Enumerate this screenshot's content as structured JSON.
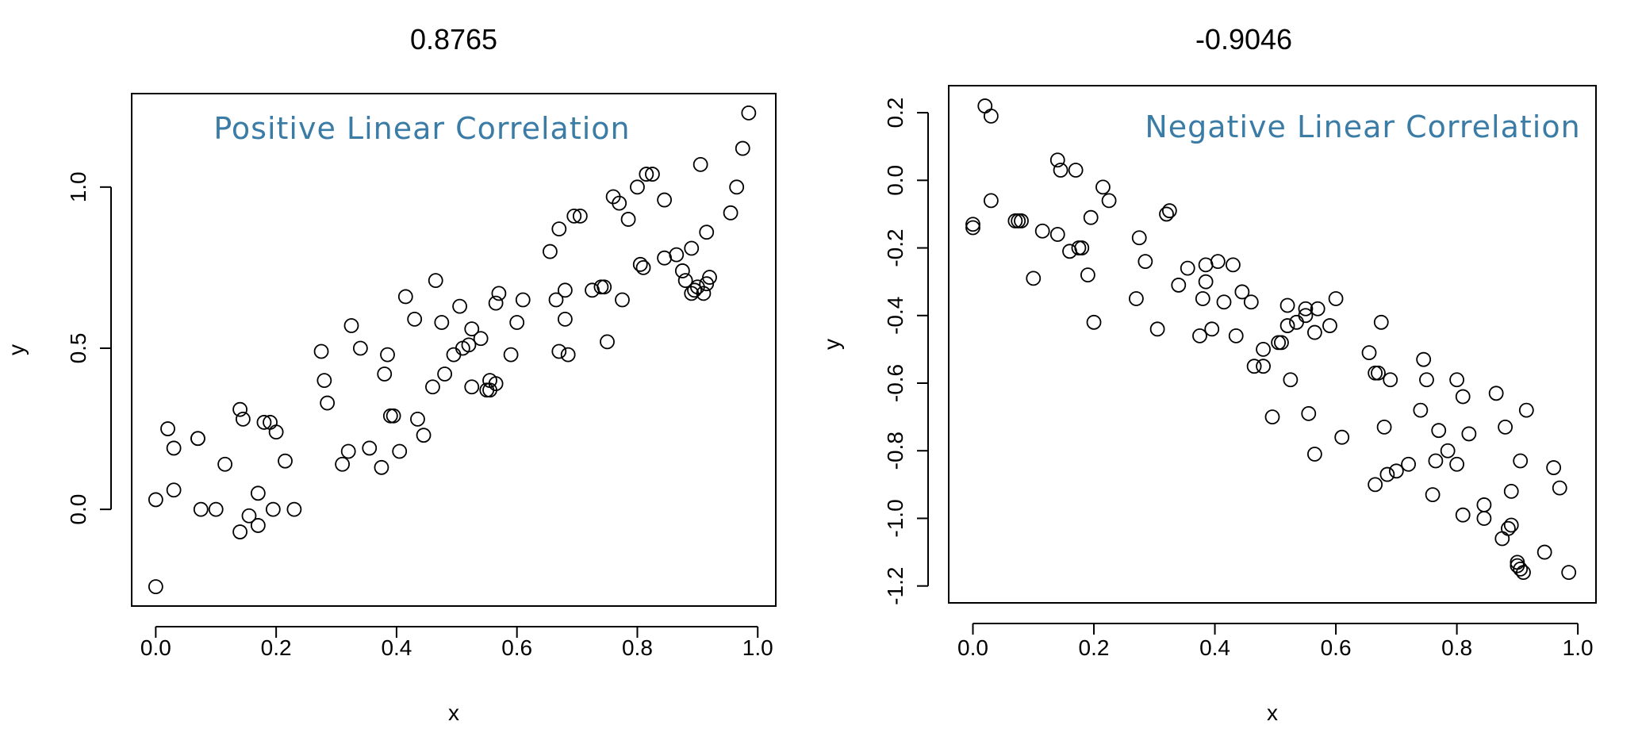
{
  "chart_data": [
    {
      "type": "scatter",
      "title": "0.8765",
      "xlabel": "x",
      "ylabel": "y",
      "xlim": [
        -0.04,
        1.03
      ],
      "ylim": [
        -0.3,
        1.29
      ],
      "xticks": [
        0.0,
        0.2,
        0.4,
        0.6,
        0.8,
        1.0
      ],
      "yticks": [
        0.0,
        0.5,
        1.0
      ],
      "xtick_labels": [
        "0.0",
        "0.2",
        "0.4",
        "0.6",
        "0.8",
        "1.0"
      ],
      "ytick_labels": [
        "0.0",
        "0.5",
        "1.0"
      ],
      "annotation": {
        "text": "Positive Linear Correlation",
        "color": "#3a7ca5"
      },
      "grid": false,
      "points": [
        [
          0.0,
          -0.24
        ],
        [
          0.0,
          0.03
        ],
        [
          0.02,
          0.25
        ],
        [
          0.03,
          0.19
        ],
        [
          0.03,
          0.06
        ],
        [
          0.07,
          0.22
        ],
        [
          0.07,
          0.22
        ],
        [
          0.075,
          0.0
        ],
        [
          0.1,
          0.0
        ],
        [
          0.115,
          0.14
        ],
        [
          0.14,
          -0.07
        ],
        [
          0.14,
          0.31
        ],
        [
          0.145,
          0.28
        ],
        [
          0.155,
          -0.02
        ],
        [
          0.17,
          -0.05
        ],
        [
          0.17,
          0.05
        ],
        [
          0.18,
          0.27
        ],
        [
          0.19,
          0.27
        ],
        [
          0.195,
          0.0
        ],
        [
          0.2,
          0.24
        ],
        [
          0.215,
          0.15
        ],
        [
          0.23,
          0.0
        ],
        [
          0.275,
          0.49
        ],
        [
          0.28,
          0.4
        ],
        [
          0.285,
          0.33
        ],
        [
          0.31,
          0.14
        ],
        [
          0.32,
          0.18
        ],
        [
          0.325,
          0.57
        ],
        [
          0.34,
          0.5
        ],
        [
          0.355,
          0.19
        ],
        [
          0.375,
          0.13
        ],
        [
          0.38,
          0.42
        ],
        [
          0.385,
          0.48
        ],
        [
          0.39,
          0.29
        ],
        [
          0.395,
          0.29
        ],
        [
          0.405,
          0.18
        ],
        [
          0.415,
          0.66
        ],
        [
          0.43,
          0.59
        ],
        [
          0.435,
          0.28
        ],
        [
          0.445,
          0.23
        ],
        [
          0.46,
          0.38
        ],
        [
          0.465,
          0.71
        ],
        [
          0.475,
          0.58
        ],
        [
          0.48,
          0.42
        ],
        [
          0.495,
          0.48
        ],
        [
          0.505,
          0.63
        ],
        [
          0.51,
          0.5
        ],
        [
          0.52,
          0.51
        ],
        [
          0.525,
          0.56
        ],
        [
          0.525,
          0.38
        ],
        [
          0.54,
          0.53
        ],
        [
          0.55,
          0.37
        ],
        [
          0.555,
          0.37
        ],
        [
          0.555,
          0.4
        ],
        [
          0.565,
          0.39
        ],
        [
          0.565,
          0.64
        ],
        [
          0.57,
          0.67
        ],
        [
          0.59,
          0.48
        ],
        [
          0.6,
          0.58
        ],
        [
          0.61,
          0.65
        ],
        [
          0.655,
          0.8
        ],
        [
          0.665,
          0.65
        ],
        [
          0.67,
          0.87
        ],
        [
          0.67,
          0.49
        ],
        [
          0.68,
          0.68
        ],
        [
          0.68,
          0.59
        ],
        [
          0.685,
          0.48
        ],
        [
          0.695,
          0.91
        ],
        [
          0.705,
          0.91
        ],
        [
          0.725,
          0.68
        ],
        [
          0.74,
          0.69
        ],
        [
          0.745,
          0.69
        ],
        [
          0.75,
          0.52
        ],
        [
          0.76,
          0.97
        ],
        [
          0.77,
          0.95
        ],
        [
          0.775,
          0.65
        ],
        [
          0.785,
          0.9
        ],
        [
          0.8,
          1.0
        ],
        [
          0.805,
          0.76
        ],
        [
          0.81,
          0.75
        ],
        [
          0.815,
          1.04
        ],
        [
          0.825,
          1.04
        ],
        [
          0.845,
          0.96
        ],
        [
          0.845,
          0.78
        ],
        [
          0.865,
          0.79
        ],
        [
          0.875,
          0.74
        ],
        [
          0.88,
          0.71
        ],
        [
          0.89,
          0.81
        ],
        [
          0.89,
          0.67
        ],
        [
          0.895,
          0.68
        ],
        [
          0.9,
          0.69
        ],
        [
          0.905,
          1.07
        ],
        [
          0.91,
          0.67
        ],
        [
          0.915,
          0.86
        ],
        [
          0.915,
          0.7
        ],
        [
          0.92,
          0.72
        ],
        [
          0.955,
          0.92
        ],
        [
          0.965,
          1.0
        ],
        [
          0.975,
          1.12
        ],
        [
          0.985,
          1.23
        ]
      ]
    },
    {
      "type": "scatter",
      "title": "-0.9046",
      "xlabel": "x",
      "ylabel": "y",
      "xlim": [
        -0.04,
        1.03
      ],
      "ylim": [
        -1.25,
        0.28
      ],
      "xticks": [
        0.0,
        0.2,
        0.4,
        0.6,
        0.8,
        1.0
      ],
      "yticks": [
        -1.2,
        -1.0,
        -0.8,
        -0.6,
        -0.4,
        -0.2,
        0.0,
        0.2
      ],
      "xtick_labels": [
        "0.0",
        "0.2",
        "0.4",
        "0.6",
        "0.8",
        "1.0"
      ],
      "ytick_labels": [
        "-1.2",
        "-1.0",
        "-0.8",
        "-0.6",
        "-0.4",
        "-0.2",
        "0.0",
        "0.2"
      ],
      "annotation": {
        "text": "Negative Linear Correlation",
        "color": "#3a7ca5"
      },
      "grid": false,
      "points": [
        [
          0.0,
          -0.13
        ],
        [
          0.0,
          -0.14
        ],
        [
          0.02,
          0.22
        ],
        [
          0.03,
          0.19
        ],
        [
          0.03,
          -0.06
        ],
        [
          0.07,
          -0.12
        ],
        [
          0.075,
          -0.12
        ],
        [
          0.08,
          -0.12
        ],
        [
          0.1,
          -0.29
        ],
        [
          0.115,
          -0.15
        ],
        [
          0.14,
          0.06
        ],
        [
          0.14,
          -0.16
        ],
        [
          0.145,
          0.03
        ],
        [
          0.16,
          -0.21
        ],
        [
          0.17,
          0.03
        ],
        [
          0.175,
          -0.2
        ],
        [
          0.18,
          -0.2
        ],
        [
          0.19,
          -0.28
        ],
        [
          0.195,
          -0.11
        ],
        [
          0.2,
          -0.42
        ],
        [
          0.215,
          -0.02
        ],
        [
          0.225,
          -0.06
        ],
        [
          0.27,
          -0.35
        ],
        [
          0.275,
          -0.17
        ],
        [
          0.285,
          -0.24
        ],
        [
          0.305,
          -0.44
        ],
        [
          0.32,
          -0.1
        ],
        [
          0.325,
          -0.09
        ],
        [
          0.34,
          -0.31
        ],
        [
          0.355,
          -0.26
        ],
        [
          0.375,
          -0.46
        ],
        [
          0.38,
          -0.35
        ],
        [
          0.385,
          -0.3
        ],
        [
          0.385,
          -0.25
        ],
        [
          0.395,
          -0.44
        ],
        [
          0.405,
          -0.24
        ],
        [
          0.415,
          -0.36
        ],
        [
          0.43,
          -0.25
        ],
        [
          0.435,
          -0.46
        ],
        [
          0.445,
          -0.33
        ],
        [
          0.46,
          -0.36
        ],
        [
          0.465,
          -0.55
        ],
        [
          0.48,
          -0.5
        ],
        [
          0.48,
          -0.55
        ],
        [
          0.495,
          -0.7
        ],
        [
          0.505,
          -0.48
        ],
        [
          0.51,
          -0.48
        ],
        [
          0.52,
          -0.37
        ],
        [
          0.52,
          -0.43
        ],
        [
          0.525,
          -0.59
        ],
        [
          0.535,
          -0.42
        ],
        [
          0.55,
          -0.38
        ],
        [
          0.55,
          -0.4
        ],
        [
          0.555,
          -0.69
        ],
        [
          0.565,
          -0.45
        ],
        [
          0.565,
          -0.81
        ],
        [
          0.57,
          -0.38
        ],
        [
          0.59,
          -0.43
        ],
        [
          0.6,
          -0.35
        ],
        [
          0.61,
          -0.76
        ],
        [
          0.655,
          -0.51
        ],
        [
          0.665,
          -0.9
        ],
        [
          0.665,
          -0.57
        ],
        [
          0.67,
          -0.57
        ],
        [
          0.675,
          -0.42
        ],
        [
          0.68,
          -0.73
        ],
        [
          0.685,
          -0.87
        ],
        [
          0.69,
          -0.59
        ],
        [
          0.7,
          -0.86
        ],
        [
          0.72,
          -0.84
        ],
        [
          0.74,
          -0.68
        ],
        [
          0.745,
          -0.53
        ],
        [
          0.75,
          -0.59
        ],
        [
          0.76,
          -0.93
        ],
        [
          0.765,
          -0.83
        ],
        [
          0.77,
          -0.74
        ],
        [
          0.785,
          -0.8
        ],
        [
          0.8,
          -0.59
        ],
        [
          0.8,
          -0.84
        ],
        [
          0.81,
          -0.64
        ],
        [
          0.81,
          -0.99
        ],
        [
          0.82,
          -0.75
        ],
        [
          0.845,
          -0.96
        ],
        [
          0.845,
          -1.0
        ],
        [
          0.865,
          -0.63
        ],
        [
          0.875,
          -1.06
        ],
        [
          0.88,
          -0.73
        ],
        [
          0.885,
          -1.03
        ],
        [
          0.89,
          -1.02
        ],
        [
          0.89,
          -0.92
        ],
        [
          0.9,
          -1.13
        ],
        [
          0.9,
          -1.14
        ],
        [
          0.905,
          -1.15
        ],
        [
          0.905,
          -0.83
        ],
        [
          0.91,
          -1.16
        ],
        [
          0.915,
          -0.68
        ],
        [
          0.945,
          -1.1
        ],
        [
          0.96,
          -0.85
        ],
        [
          0.97,
          -0.91
        ],
        [
          0.985,
          -1.16
        ]
      ]
    }
  ]
}
